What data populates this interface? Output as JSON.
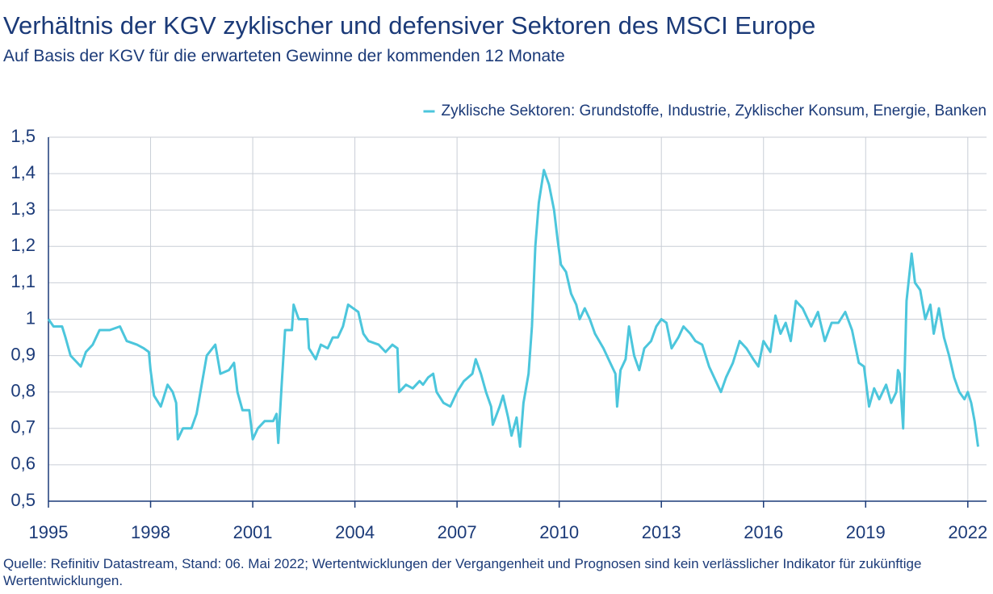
{
  "chart_data": {
    "type": "line",
    "title": "Verhältnis der KGV zyklischer und defensiver Sektoren des MSCI Europe",
    "subtitle": "Auf Basis der KGV für die erwarteten Gewinne der kommenden 12 Monate",
    "source": "Quelle: Refinitiv Datastream, Stand: 06. Mai 2022; Wertentwicklungen der Vergangenheit und Prognosen sind kein verlässlicher Indikator für zukünftige Wertentwicklungen.",
    "legend": "top-right",
    "grid": true,
    "xlim": [
      1995,
      2022.55
    ],
    "xticks": [
      1995,
      1998,
      2001,
      2004,
      2007,
      2010,
      2013,
      2016,
      2019,
      2022
    ],
    "ylim": [
      0.5,
      1.5
    ],
    "yticks": [
      {
        "value": 0.5,
        "label": "0,5"
      },
      {
        "value": 0.6,
        "label": "0,6"
      },
      {
        "value": 0.7,
        "label": "0,7"
      },
      {
        "value": 0.8,
        "label": "0,8"
      },
      {
        "value": 0.9,
        "label": "0,9"
      },
      1,
      {
        "value": 1.1,
        "label": "1,1"
      },
      {
        "value": 1.2,
        "label": "1,2"
      },
      {
        "value": 1.3,
        "label": "1,3"
      },
      {
        "value": 1.4,
        "label": "1,4"
      },
      {
        "value": 1.5,
        "label": "1,5"
      }
    ],
    "x": [
      1995.0,
      1995.15,
      1995.4,
      1995.5,
      1995.65,
      1995.85,
      1995.95,
      1996.1,
      1996.3,
      1996.5,
      1996.8,
      1997.1,
      1997.3,
      1997.6,
      1997.8,
      1997.95,
      1998.0,
      1998.1,
      1998.3,
      1998.5,
      1998.65,
      1998.75,
      1998.8,
      1998.95,
      1999.2,
      1999.35,
      1999.5,
      1999.65,
      1999.9,
      2000.05,
      2000.3,
      2000.45,
      2000.55,
      2000.7,
      2000.9,
      2001.0,
      2001.15,
      2001.35,
      2001.6,
      2001.7,
      2001.75,
      2001.85,
      2001.95,
      2002.15,
      2002.2,
      2002.35,
      2002.6,
      2002.65,
      2002.85,
      2003.0,
      2003.2,
      2003.35,
      2003.5,
      2003.65,
      2003.8,
      2003.95,
      2004.1,
      2004.25,
      2004.4,
      2004.7,
      2004.9,
      2005.1,
      2005.25,
      2005.3,
      2005.5,
      2005.7,
      2005.9,
      2006.0,
      2006.15,
      2006.3,
      2006.4,
      2006.6,
      2006.8,
      2007.0,
      2007.2,
      2007.45,
      2007.55,
      2007.7,
      2007.85,
      2008.0,
      2008.05,
      2008.25,
      2008.35,
      2008.5,
      2008.6,
      2008.75,
      2008.85,
      2008.95,
      2009.1,
      2009.2,
      2009.3,
      2009.4,
      2009.55,
      2009.7,
      2009.85,
      2009.95,
      2010.05,
      2010.2,
      2010.35,
      2010.5,
      2010.6,
      2010.75,
      2010.9,
      2011.05,
      2011.3,
      2011.5,
      2011.65,
      2011.7,
      2011.8,
      2011.95,
      2012.05,
      2012.2,
      2012.35,
      2012.5,
      2012.7,
      2012.85,
      2013.0,
      2013.15,
      2013.3,
      2013.5,
      2013.65,
      2013.85,
      2014.0,
      2014.2,
      2014.4,
      2014.6,
      2014.75,
      2014.9,
      2015.1,
      2015.3,
      2015.5,
      2015.7,
      2015.85,
      2016.0,
      2016.2,
      2016.35,
      2016.5,
      2016.65,
      2016.8,
      2016.95,
      2017.15,
      2017.4,
      2017.6,
      2017.8,
      2018.0,
      2018.2,
      2018.4,
      2018.6,
      2018.8,
      2018.95,
      2019.1,
      2019.25,
      2019.4,
      2019.6,
      2019.75,
      2019.9,
      2019.95,
      2020.0,
      2020.1,
      2020.2,
      2020.35,
      2020.45,
      2020.6,
      2020.75,
      2020.9,
      2021.0,
      2021.15,
      2021.3,
      2021.45,
      2021.6,
      2021.75,
      2021.9,
      2022.0,
      2022.1,
      2022.2,
      2022.3
    ],
    "series": [
      {
        "name": "Zyklische Sektoren: Grundstoffe, Industrie, Zyklischer Konsum, Energie, Banken",
        "color": "#4cc6dc",
        "values": [
          1.0,
          0.98,
          0.98,
          0.95,
          0.9,
          0.88,
          0.87,
          0.91,
          0.93,
          0.97,
          0.97,
          0.98,
          0.94,
          0.93,
          0.92,
          0.91,
          0.86,
          0.79,
          0.76,
          0.82,
          0.8,
          0.77,
          0.67,
          0.7,
          0.7,
          0.74,
          0.82,
          0.9,
          0.93,
          0.85,
          0.86,
          0.88,
          0.8,
          0.75,
          0.75,
          0.67,
          0.7,
          0.72,
          0.72,
          0.74,
          0.66,
          0.82,
          0.97,
          0.97,
          1.04,
          1.0,
          1.0,
          0.92,
          0.89,
          0.93,
          0.92,
          0.95,
          0.95,
          0.98,
          1.04,
          1.03,
          1.02,
          0.96,
          0.94,
          0.93,
          0.91,
          0.93,
          0.92,
          0.8,
          0.82,
          0.81,
          0.83,
          0.82,
          0.84,
          0.85,
          0.8,
          0.77,
          0.76,
          0.8,
          0.83,
          0.85,
          0.89,
          0.85,
          0.8,
          0.76,
          0.71,
          0.76,
          0.79,
          0.73,
          0.68,
          0.73,
          0.65,
          0.77,
          0.85,
          0.98,
          1.2,
          1.32,
          1.41,
          1.37,
          1.3,
          1.22,
          1.15,
          1.13,
          1.07,
          1.04,
          1.0,
          1.03,
          1.0,
          0.96,
          0.92,
          0.88,
          0.85,
          0.76,
          0.86,
          0.89,
          0.98,
          0.9,
          0.86,
          0.92,
          0.94,
          0.98,
          1.0,
          0.99,
          0.92,
          0.95,
          0.98,
          0.96,
          0.94,
          0.93,
          0.87,
          0.83,
          0.8,
          0.84,
          0.88,
          0.94,
          0.92,
          0.89,
          0.87,
          0.94,
          0.91,
          1.01,
          0.96,
          0.99,
          0.94,
          1.05,
          1.03,
          0.98,
          1.02,
          0.94,
          0.99,
          0.99,
          1.02,
          0.97,
          0.88,
          0.87,
          0.76,
          0.81,
          0.78,
          0.82,
          0.77,
          0.8,
          0.86,
          0.85,
          0.7,
          1.05,
          1.18,
          1.1,
          1.08,
          1.0,
          1.04,
          0.96,
          1.03,
          0.95,
          0.9,
          0.84,
          0.8,
          0.78,
          0.8,
          0.77,
          0.72,
          0.65
        ]
      }
    ]
  }
}
